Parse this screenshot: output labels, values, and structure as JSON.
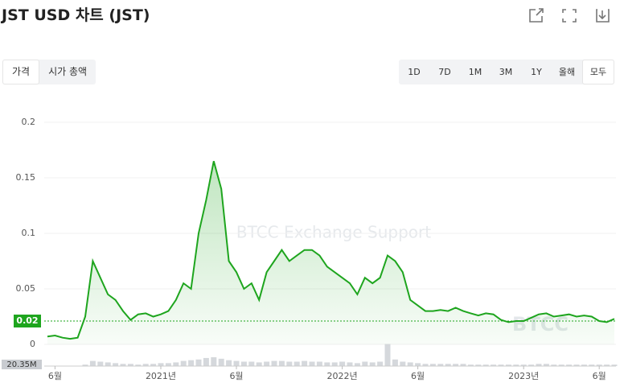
{
  "title": "JST USD 차트 (JST)",
  "tabs": [
    "가격",
    "시가 총액"
  ],
  "ranges": [
    "1D",
    "7D",
    "1M",
    "3M",
    "1Y",
    "올해",
    "모두"
  ],
  "watermark": "BTCC Exchange Support",
  "logo": "BTCC",
  "chart_data": {
    "type": "line",
    "categories": [
      null,
      "6월",
      null,
      null,
      null,
      null,
      null,
      null,
      null,
      null,
      null,
      null,
      null,
      null,
      null,
      "2021년",
      null,
      null,
      null,
      null,
      null,
      null,
      null,
      null,
      null,
      "6월",
      null,
      null,
      null,
      null,
      null,
      null,
      null,
      null,
      null,
      null,
      null,
      null,
      null,
      "2022년",
      null,
      null,
      null,
      null,
      null,
      null,
      null,
      null,
      null,
      "6월",
      null,
      null,
      null,
      null,
      null,
      null,
      null,
      null,
      null,
      null,
      null,
      null,
      null,
      "2023년",
      null,
      null,
      null,
      null,
      null,
      null,
      null,
      null,
      null,
      "6월",
      null,
      null
    ],
    "series": [
      {
        "name": "JST",
        "color": "#1ea51e",
        "values": [
          0.007,
          0.008,
          0.006,
          0.005,
          0.006,
          0.025,
          0.075,
          0.06,
          0.045,
          0.04,
          0.03,
          0.022,
          0.027,
          0.028,
          0.025,
          0.027,
          0.03,
          0.04,
          0.055,
          0.05,
          0.1,
          0.13,
          0.165,
          0.14,
          0.075,
          0.065,
          0.05,
          0.055,
          0.04,
          0.065,
          0.075,
          0.085,
          0.075,
          0.08,
          0.085,
          0.085,
          0.08,
          0.07,
          0.065,
          0.06,
          0.055,
          0.045,
          0.06,
          0.055,
          0.06,
          0.08,
          0.075,
          0.065,
          0.04,
          0.035,
          0.03,
          0.03,
          0.031,
          0.03,
          0.033,
          0.03,
          0.028,
          0.026,
          0.028,
          0.027,
          0.022,
          0.02,
          0.021,
          0.021,
          0.024,
          0.027,
          0.028,
          0.025,
          0.026,
          0.027,
          0.025,
          0.026,
          0.025,
          0.021,
          0.02,
          0.023
        ]
      }
    ],
    "volume": {
      "label": "20.35M",
      "values": [
        0.5,
        0.5,
        0.4,
        0.4,
        0.5,
        2,
        7,
        6,
        5,
        4,
        3,
        3,
        2,
        3,
        3,
        4,
        4,
        5,
        7,
        8,
        9,
        11,
        12,
        10,
        8,
        7,
        6,
        6,
        5,
        6,
        7,
        7,
        6,
        6,
        7,
        6,
        6,
        5,
        5,
        6,
        5,
        4,
        6,
        5,
        6,
        30,
        9,
        6,
        5,
        4,
        3,
        3,
        3,
        3,
        3,
        3,
        2,
        2,
        2,
        2,
        2,
        2,
        2,
        2,
        2,
        3,
        3,
        2,
        2,
        2,
        2,
        2,
        2,
        2,
        2,
        2
      ],
      "ylim": [
        0,
        35
      ]
    },
    "ylim": [
      0,
      0.2
    ],
    "yticks": [
      0,
      0.05,
      0.1,
      0.15,
      0.2
    ],
    "price_marker": {
      "value": 0.021,
      "label": "0.02"
    }
  }
}
